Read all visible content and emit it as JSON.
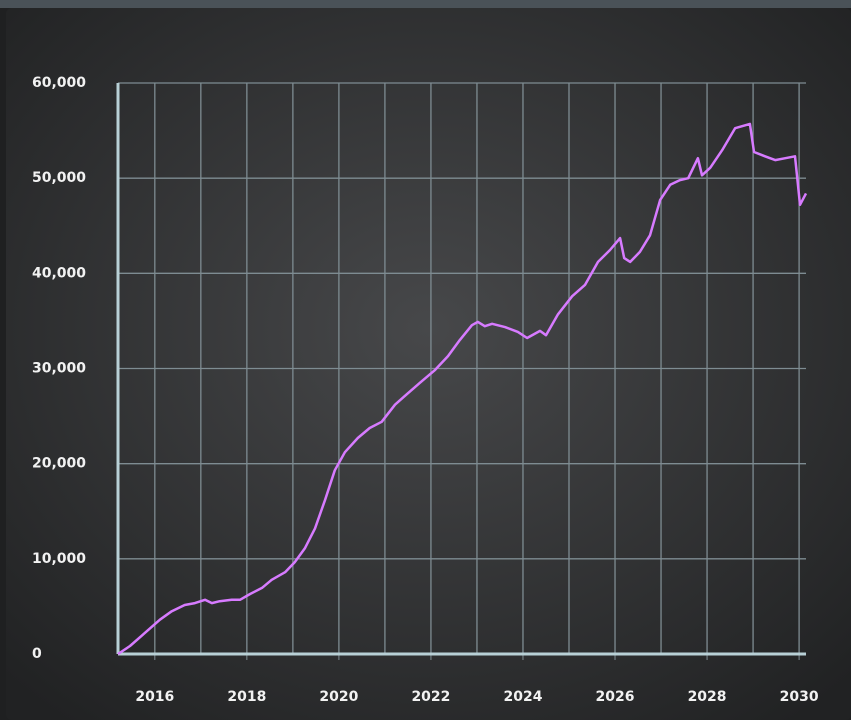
{
  "chart_data": {
    "type": "line",
    "x": [
      2015.2,
      2015.46,
      2015.78,
      2016.11,
      2016.37,
      2016.65,
      2016.87,
      2017.09,
      2017.24,
      2017.41,
      2017.67,
      2017.85,
      2018.07,
      2018.33,
      2018.54,
      2018.83,
      2019.04,
      2019.26,
      2019.48,
      2019.7,
      2019.91,
      2020.13,
      2020.41,
      2020.67,
      2020.93,
      2021.22,
      2021.43,
      2021.76,
      2022.09,
      2022.37,
      2022.63,
      2022.89,
      2023.02,
      2023.17,
      2023.33,
      2023.61,
      2023.89,
      2024.09,
      2024.37,
      2024.5,
      2024.76,
      2025.07,
      2025.35,
      2025.63,
      2025.89,
      2026.11,
      2026.2,
      2026.33,
      2026.54,
      2026.76,
      2026.98,
      2027.2,
      2027.41,
      2027.59,
      2027.8,
      2027.89,
      2028.07,
      2028.33,
      2028.61,
      2028.93,
      2029.02,
      2029.26,
      2029.48,
      2029.7,
      2029.91,
      2030.02,
      2030.15
    ],
    "series": [
      {
        "color": "#d77bff",
        "values": [
          0,
          840,
          2200,
          3600,
          4500,
          5150,
          5350,
          5700,
          5350,
          5550,
          5700,
          5700,
          6300,
          6950,
          7800,
          8600,
          9650,
          11100,
          13200,
          16200,
          19300,
          21200,
          22700,
          23750,
          24400,
          26200,
          27100,
          28500,
          29850,
          31300,
          33000,
          34550,
          34900,
          34450,
          34700,
          34350,
          33850,
          33200,
          33950,
          33500,
          35700,
          37600,
          38800,
          41200,
          42450,
          43700,
          41600,
          41200,
          42250,
          44000,
          47700,
          49300,
          49800,
          50000,
          52100,
          50300,
          51100,
          52950,
          55250,
          55700,
          52750,
          52300,
          51900,
          52100,
          52300,
          47200,
          48400
        ]
      }
    ],
    "xlim": [
      2015.2,
      2030.15
    ],
    "xticks": [
      2016,
      2018,
      2020,
      2022,
      2024,
      2026,
      2028,
      2030
    ],
    "xgrid": [
      2016,
      2017,
      2018,
      2019,
      2020,
      2021,
      2022,
      2023,
      2024,
      2025,
      2026,
      2027,
      2028,
      2029,
      2030
    ],
    "ylim": [
      0,
      60000
    ],
    "yticks": [
      {
        "value": 0,
        "label": "0"
      },
      {
        "value": 10000,
        "label": "10,000"
      },
      {
        "value": 20000,
        "label": "20,000"
      },
      {
        "value": 30000,
        "label": "30,000"
      },
      {
        "value": 40000,
        "label": "40,000"
      },
      {
        "value": 50000,
        "label": "50,000"
      },
      {
        "value": 60000,
        "label": "60,000"
      }
    ],
    "grid": true
  }
}
